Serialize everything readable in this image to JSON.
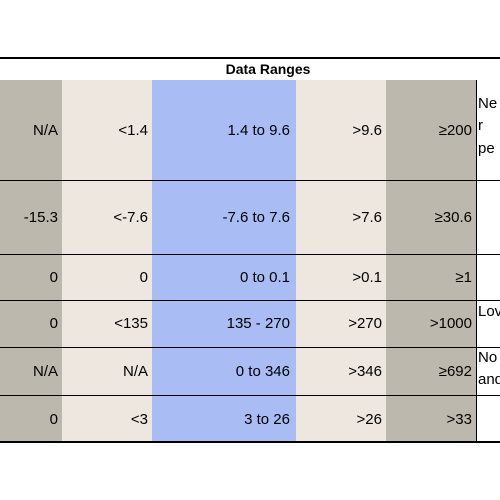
{
  "table": {
    "title": "Data Ranges",
    "rows": [
      {
        "c0": "N/A",
        "c1": "<1.4",
        "c2": "1.4 to 9.6",
        "c3": ">9.6",
        "c4": "≥200",
        "note": [
          "Ne",
          "r",
          "pe"
        ]
      },
      {
        "c0": "-15.3",
        "c1": "<-7.6",
        "c2": "-7.6 to 7.6",
        "c3": ">7.6",
        "c4": "≥30.6",
        "note": []
      },
      {
        "c0": "0",
        "c1": "0",
        "c2": "0 to 0.1",
        "c3": ">0.1",
        "c4": "≥1",
        "note": []
      },
      {
        "c0": "0",
        "c1": "<135",
        "c2": "135 - 270",
        "c3": ">270",
        "c4": ">1000",
        "note": [
          "Lov"
        ]
      },
      {
        "c0": "N/A",
        "c1": "N/A",
        "c2": "0 to 346",
        "c3": ">346",
        "c4": "≥692",
        "note": [
          "No",
          "and"
        ]
      },
      {
        "c0": "0",
        "c1": "<3",
        "c2": "3 to 26",
        "c3": ">26",
        "c4": ">33",
        "note": []
      }
    ]
  },
  "colors": {
    "gray": "#bdb8ad",
    "beige": "#ede7df",
    "blue": "#a9bcf4"
  }
}
